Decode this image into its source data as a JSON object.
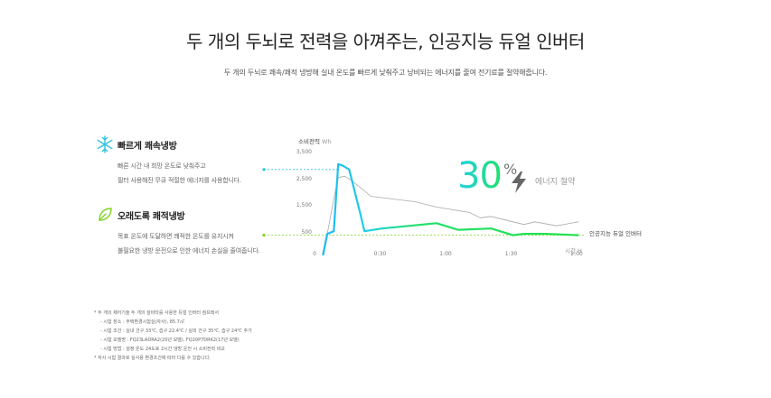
{
  "header": {
    "title": "두 개의 두뇌로 전력을 아껴주는, 인공지능 듀얼 인버터",
    "subtitle": "두 개의 두뇌로 쾌속/쾌적 냉방해 실내 온도를 빠르게 낮춰주고 낭비되는 에너지를 줄여 전기료를 절약해줍니다."
  },
  "features": [
    {
      "label": "빠르게 쾌속냉방",
      "icon": "snowflake-icon",
      "lines": [
        "빠른 시간 내 희망 온도로 낮춰주고",
        "필터 사용해진 무큐 적절한 에너지를 사용합니다."
      ]
    },
    {
      "label": "오래도록 쾌적냉방",
      "icon": "leaf-icon",
      "lines": [
        "목표 온도에 도달하면 쾌적한 온도를 유지시켜",
        "불필요한 냉방 운전으로 인한 에너지 손실을 줄여줍니다."
      ]
    }
  ],
  "savings": {
    "value": "30",
    "unit": "%",
    "label": "에너지 절약"
  },
  "chart_data": {
    "type": "line",
    "ylabel": "소비전력",
    "yunit": "Wh",
    "xlabel": "시간",
    "xunit": "H",
    "ylim": [
      0,
      3500
    ],
    "xlim": [
      0,
      120
    ],
    "yticks": [
      "3,500",
      "2,500",
      "1,500",
      "500"
    ],
    "ytick_values": [
      3500,
      2500,
      1500,
      500
    ],
    "xticks": [
      "0",
      "0:30",
      "1:00",
      "1:30",
      "2:00"
    ],
    "xtick_values": [
      0,
      30,
      60,
      90,
      120
    ],
    "series": [
      {
        "name": "인공지능 듀얼 인버터",
        "color": "#21e0a0",
        "points": [
          [
            3,
            -300
          ],
          [
            5,
            500
          ],
          [
            8,
            600
          ],
          [
            10,
            3100
          ],
          [
            12,
            3050
          ],
          [
            15,
            2900
          ],
          [
            20,
            1300
          ],
          [
            22,
            600
          ],
          [
            30,
            700
          ],
          [
            55,
            900
          ],
          [
            65,
            650
          ],
          [
            80,
            700
          ],
          [
            90,
            450
          ],
          [
            95,
            500
          ],
          [
            105,
            500
          ],
          [
            120,
            450
          ]
        ]
      },
      {
        "name": "",
        "color": "#aaaaaa",
        "points": [
          [
            3,
            -300
          ],
          [
            5,
            500
          ],
          [
            8,
            1800
          ],
          [
            10,
            2600
          ],
          [
            13,
            2650
          ],
          [
            16,
            2500
          ],
          [
            25,
            1900
          ],
          [
            35,
            1800
          ],
          [
            45,
            1700
          ],
          [
            55,
            1500
          ],
          [
            70,
            1300
          ],
          [
            75,
            1100
          ],
          [
            80,
            1150
          ],
          [
            90,
            950
          ],
          [
            95,
            850
          ],
          [
            100,
            950
          ],
          [
            110,
            800
          ],
          [
            120,
            950
          ]
        ]
      }
    ],
    "reference_lines": [
      {
        "label": "빠르게 쾌속냉방",
        "y": 2900,
        "color": "#29c2e0"
      },
      {
        "label": "오래도록 쾌적냉방",
        "y": 450,
        "color": "#7ed321"
      }
    ]
  },
  "notes": {
    "items": [
      "* 두 개의 제어기술 두 개의 설비타를 사용한 듀얼 인버터 컴프레서",
      "- 시험 장소 : 주택환경시험실(자사), 85.7㎡",
      "- 시험 조건 : 실내 건구 33℃, 습구 22.4℃ / 실외 건구 35℃, 습구 24℃ 추가",
      "- 시험 모델명 : FQ23LADRA2(20년 모델), FQ20P7DRK2(17년 모델)",
      "- 시험 방법 : 설정 온도 24도로 2시간 냉방 운전 시 소비전력 비교",
      "* 자사 시험 결과로 실사용 환경조건에 따라 다를 수 있습니다."
    ]
  }
}
